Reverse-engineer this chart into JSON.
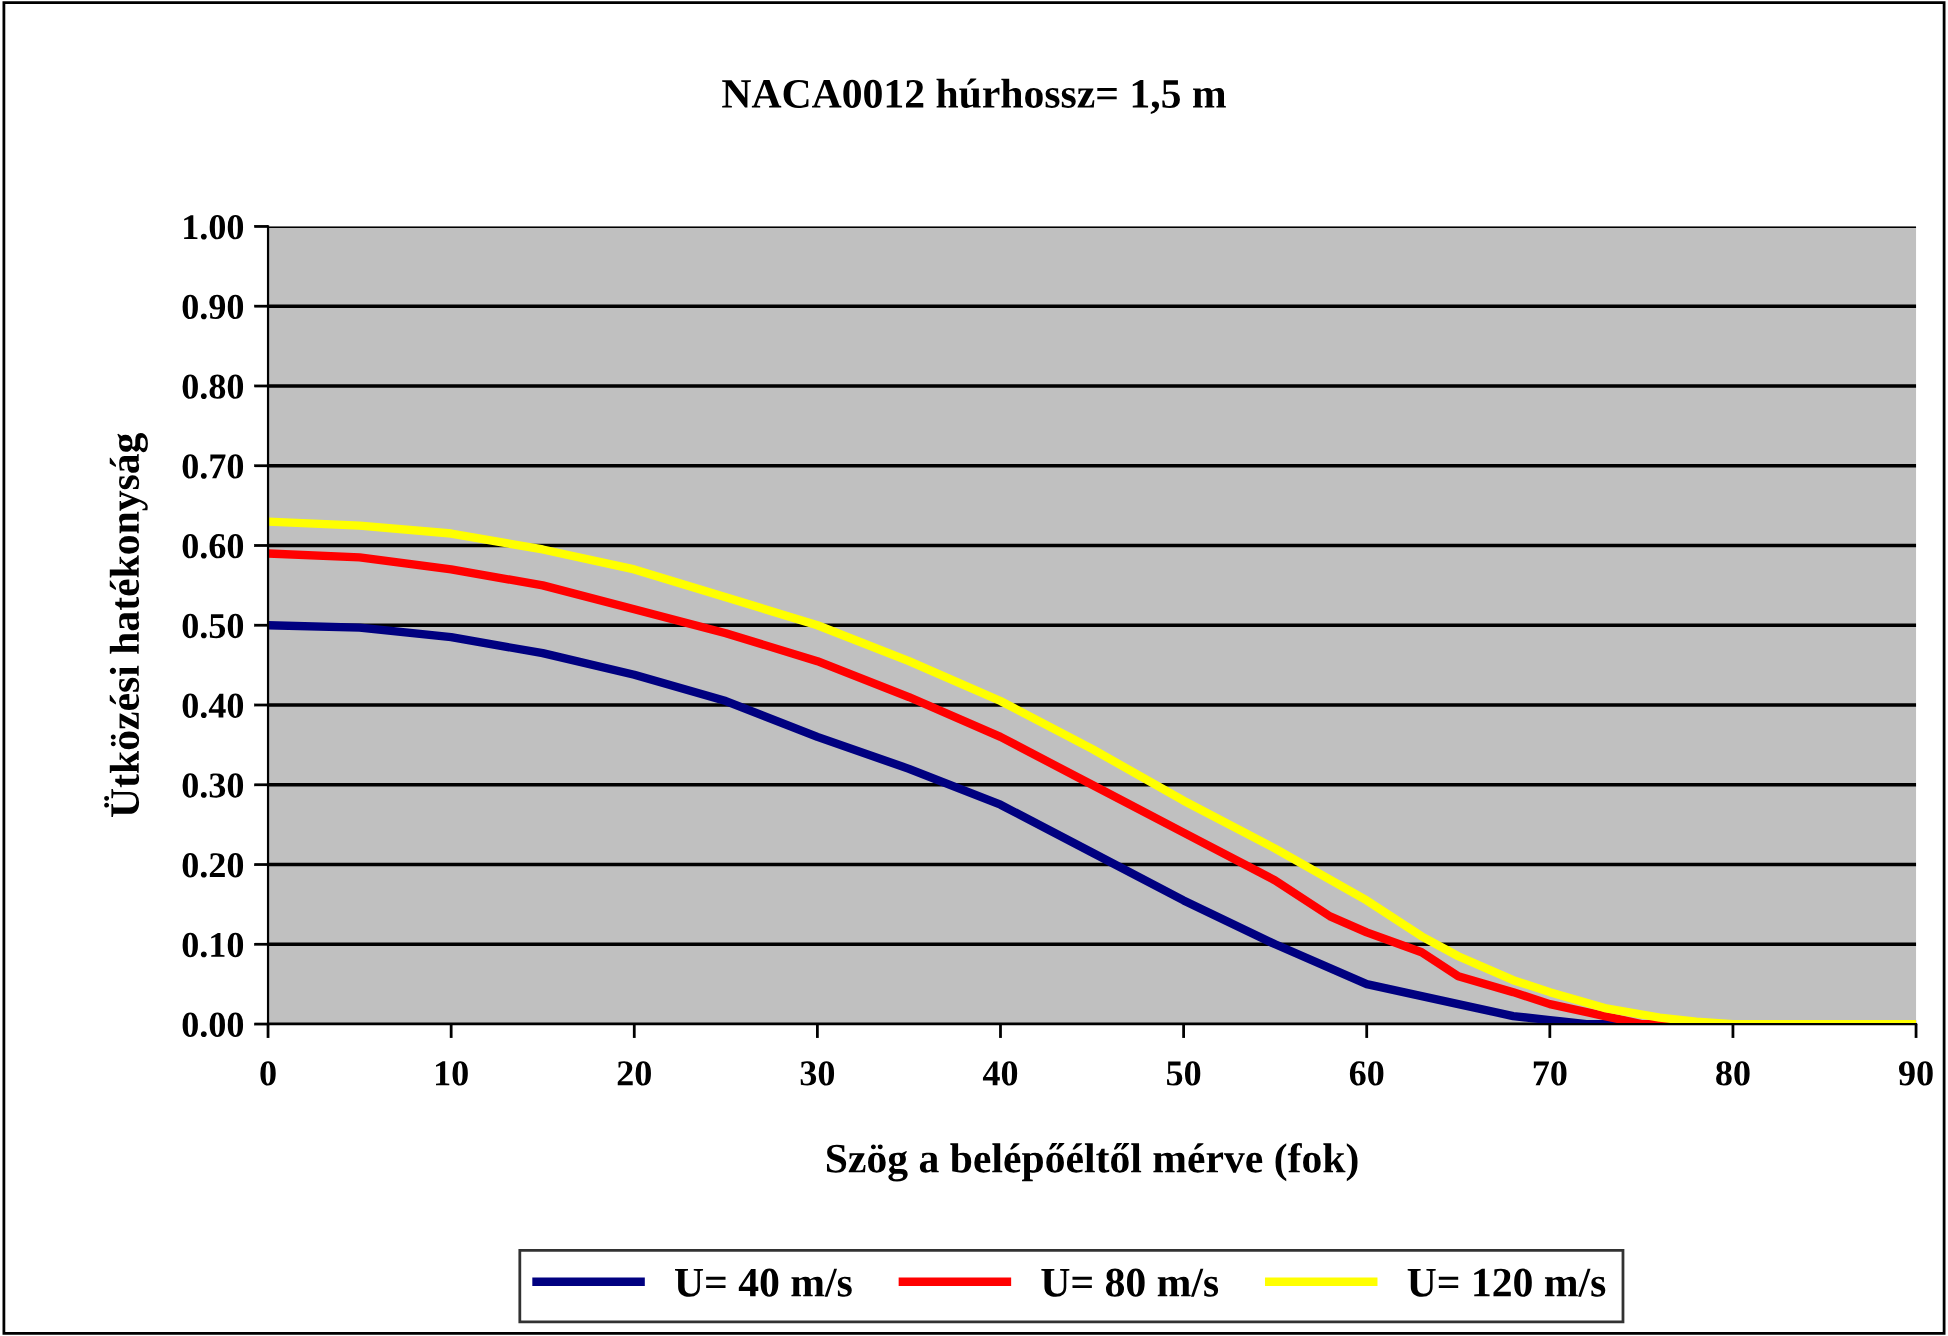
{
  "chart_data": {
    "type": "line",
    "title": "NACA0012 húrhossz= 1,5 m",
    "xlabel": "Szög a belépőéltől mérve (fok)",
    "ylabel": "Ütközési hatékonyság",
    "xlim": [
      0,
      90
    ],
    "xticks": [
      0,
      10,
      20,
      30,
      40,
      50,
      60,
      70,
      80,
      90
    ],
    "ylim": [
      0,
      1
    ],
    "yticks": [
      {
        "value": 0,
        "label": "0.00"
      },
      {
        "value": 0.1,
        "label": "0.10"
      },
      {
        "value": 0.2,
        "label": "0.20"
      },
      {
        "value": 0.3,
        "label": "0.30"
      },
      {
        "value": 0.4,
        "label": "0.40"
      },
      {
        "value": 0.5,
        "label": "0.50"
      },
      {
        "value": 0.6,
        "label": "0.60"
      },
      {
        "value": 0.7,
        "label": "0.70"
      },
      {
        "value": 0.8,
        "label": "0.80"
      },
      {
        "value": 0.9,
        "label": "0.90"
      },
      {
        "value": 1,
        "label": "1.00"
      }
    ],
    "grid": "y",
    "legend": "bottom",
    "marker": "none",
    "line_style": "solid",
    "series": [
      {
        "name": "U= 40 m/s",
        "color": "#000080",
        "x": [
          0,
          5,
          10,
          15,
          20,
          25,
          30,
          35,
          40,
          45,
          50,
          55,
          60,
          62,
          65,
          68,
          70,
          72,
          90
        ],
        "values": [
          0.5,
          0.497,
          0.485,
          0.465,
          0.438,
          0.405,
          0.36,
          0.32,
          0.275,
          0.215,
          0.155,
          0.1,
          0.05,
          0.04,
          0.025,
          0.01,
          0.005,
          0,
          0
        ]
      },
      {
        "name": "U= 80 m/s",
        "color": "#ff0000",
        "x": [
          0,
          5,
          10,
          15,
          20,
          25,
          30,
          35,
          40,
          45,
          50,
          55,
          58,
          60,
          63,
          65,
          68,
          70,
          73,
          75,
          90
        ],
        "values": [
          0.59,
          0.585,
          0.57,
          0.55,
          0.52,
          0.49,
          0.455,
          0.41,
          0.36,
          0.3,
          0.24,
          0.18,
          0.135,
          0.115,
          0.09,
          0.06,
          0.04,
          0.025,
          0.01,
          0,
          0
        ]
      },
      {
        "name": "U= 120 m/s",
        "color": "#ffff00",
        "x": [
          0,
          5,
          10,
          15,
          20,
          25,
          30,
          35,
          40,
          45,
          50,
          55,
          60,
          63,
          65,
          68,
          70,
          73,
          76,
          78,
          80,
          90
        ],
        "values": [
          0.63,
          0.625,
          0.615,
          0.595,
          0.57,
          0.535,
          0.5,
          0.455,
          0.405,
          0.345,
          0.28,
          0.22,
          0.155,
          0.11,
          0.085,
          0.055,
          0.04,
          0.02,
          0.008,
          0.003,
          0,
          0
        ]
      }
    ]
  }
}
